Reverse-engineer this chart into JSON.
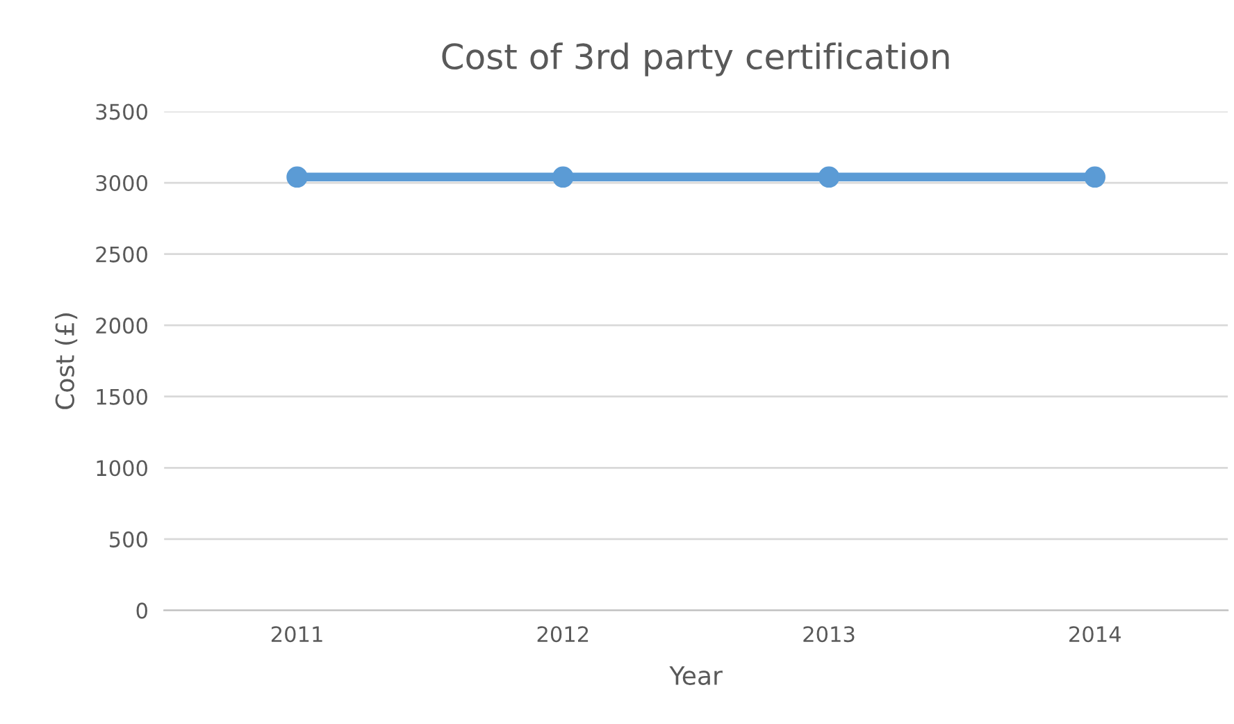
{
  "chart_data": {
    "type": "line",
    "title": "Cost of 3rd party certification",
    "xlabel": "Year",
    "ylabel": "Cost (£)",
    "categories": [
      "2011",
      "2012",
      "2013",
      "2014"
    ],
    "series": [
      {
        "color": "#5b9bd5",
        "values": [
          3040,
          3040,
          3040,
          3040
        ]
      }
    ],
    "ylim": [
      0,
      3500
    ],
    "yticks": [
      0,
      500,
      1000,
      1500,
      2000,
      2500,
      3000,
      3500
    ],
    "grid": "y",
    "marker": "circle",
    "line_style": "solid",
    "legend": false
  }
}
